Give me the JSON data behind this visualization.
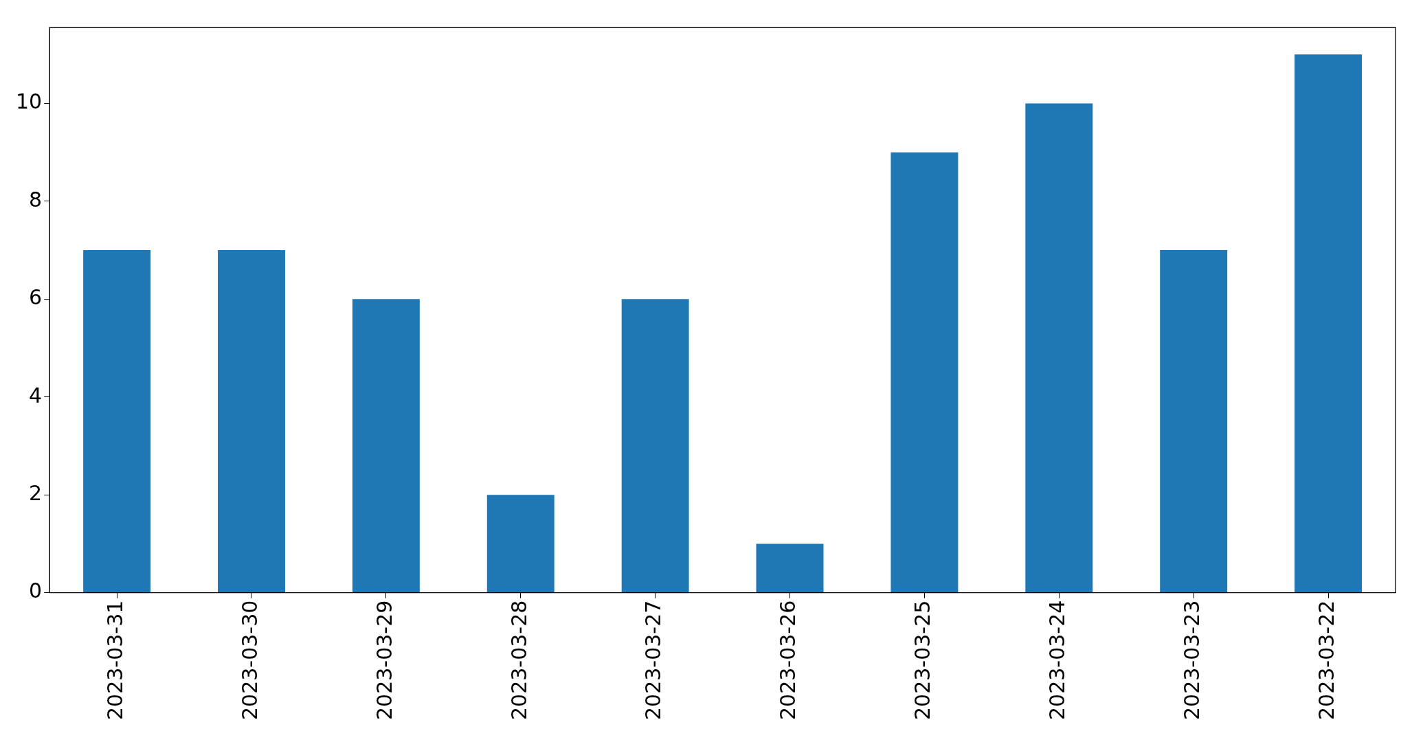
{
  "chart_data": {
    "type": "bar",
    "categories": [
      "2023-03-31",
      "2023-03-30",
      "2023-03-29",
      "2023-03-28",
      "2023-03-27",
      "2023-03-26",
      "2023-03-25",
      "2023-03-24",
      "2023-03-23",
      "2023-03-22"
    ],
    "values": [
      7,
      7,
      6,
      2,
      6,
      1,
      9,
      10,
      7,
      11
    ],
    "color": "#1f77b4",
    "ylim": [
      0,
      11.55
    ],
    "yticks": [
      0,
      2,
      4,
      6,
      8,
      10
    ],
    "grid": false,
    "legend": false
  }
}
